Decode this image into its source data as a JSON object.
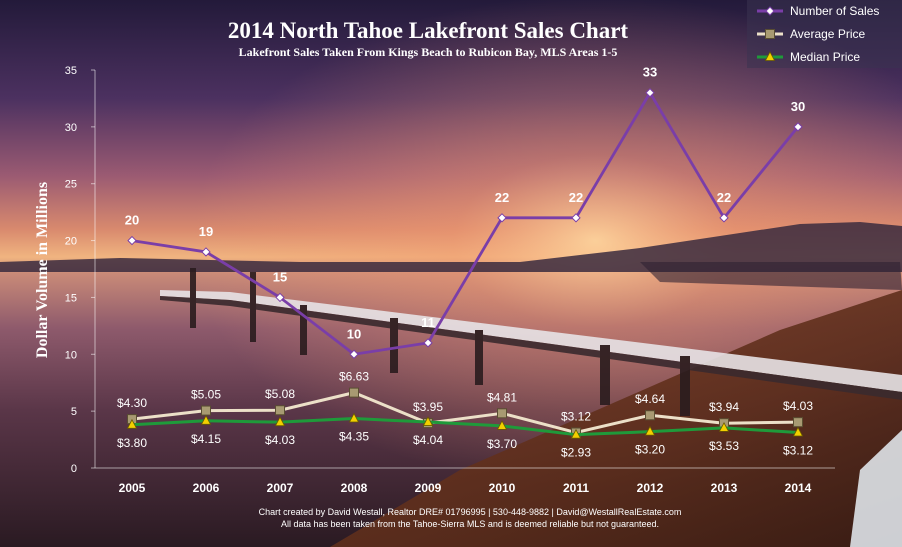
{
  "chart_data": {
    "type": "line",
    "title": "2014 North Tahoe Lakefront Sales Chart",
    "subtitle": "Lakefront Sales Taken From Kings Beach to Rubicon Bay, MLS Areas 1-5",
    "ylabel": "Dollar Volume in Millions",
    "xlabel": "",
    "ylim": [
      0,
      35
    ],
    "yticks": [
      0,
      5,
      10,
      15,
      20,
      25,
      30,
      35
    ],
    "grid": false,
    "legend_position": "top-right",
    "categories": [
      "2005",
      "2006",
      "2007",
      "2008",
      "2009",
      "2010",
      "2011",
      "2012",
      "2013",
      "2014"
    ],
    "series": [
      {
        "name": "Number of Sales",
        "color": "#7a3ea8",
        "marker": "diamond",
        "values": [
          20,
          19,
          15,
          10,
          11,
          22,
          22,
          33,
          22,
          30
        ],
        "labels": [
          "20",
          "19",
          "15",
          "10",
          "11",
          "22",
          "22",
          "33",
          "22",
          "30"
        ]
      },
      {
        "name": "Average Price",
        "color": "#ece0c8",
        "marker": "square",
        "values": [
          4.3,
          5.05,
          5.08,
          6.63,
          3.95,
          4.81,
          3.12,
          4.64,
          3.94,
          4.03
        ],
        "labels": [
          "$4.30",
          "$5.05",
          "$5.08",
          "$6.63",
          "$3.95",
          "$4.81",
          "$3.12",
          "$4.64",
          "$3.94",
          "$4.03"
        ]
      },
      {
        "name": "Median Price",
        "color": "#1f9a3a",
        "marker": "triangle",
        "values": [
          3.8,
          4.15,
          4.03,
          4.35,
          4.04,
          3.7,
          2.93,
          3.2,
          3.53,
          3.12
        ],
        "labels": [
          "$3.80",
          "$4.15",
          "$4.03",
          "$4.35",
          "$4.04",
          "$3.70",
          "$2.93",
          "$3.20",
          "$3.53",
          "$3.12"
        ]
      }
    ]
  },
  "footer": {
    "line1": "Chart created by David Westall, Realtor DRE# 01796995 | 530-448-9882 | David@WestallRealEstate.com",
    "line2": "All data has been taken from the Tahoe-Sierra MLS and is deemed reliable but not guaranteed."
  }
}
